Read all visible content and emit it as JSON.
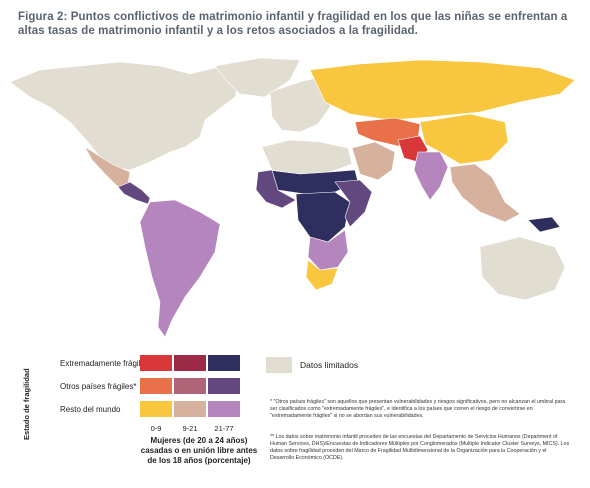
{
  "title": "Figura 2: Puntos conflictivos de matrimonio infantil y fragilidad en los que las niñas se enfrentan a altas tasas de matrimonio infantil y a los retos asociados a la fragilidad.",
  "legend": {
    "y_title": "Estado de fragilidad",
    "rows": [
      "Extremadamente frágil",
      "Otros países frágiles*",
      "Resto del mundo"
    ],
    "columns": [
      "0-9",
      "9-21",
      "21-77"
    ],
    "x_title": "Mujeres (de 20 a 24 años) casadas o en unión libre antes de los 18 años (porcentaje)",
    "colors": [
      [
        "#d8383a",
        "#9c2a47",
        "#2e2f5e"
      ],
      [
        "#e8714a",
        "#b06477",
        "#63487f"
      ],
      [
        "#f8c73f",
        "#d6b19e",
        "#b585bd"
      ]
    ],
    "limited_label": "Datos limitados",
    "limited_color": "#e2ddd1"
  },
  "notes": {
    "note1": "* \"Otros países frágiles\" son aquellos que presentan vulnerabilidades y riesgos significativos, pero no alcanzan el umbral para ser clasificados como \"extremadamente frágiles\", e identifica a los países que corren el riesgo de convertirse en \"extremadamente frágiles\" si no se abordan sus vulnerabilidades.",
    "note2": "** Los datos sobre matrimonio infantil proceden de las encuestas del Departamento de Servicios Humanos (Department of Human Services, DHS)/Encuestas de Indicadores Múltiples por Conglomerados (Multiple Indicator Cluster Surveys, MICS). Los datos sobre fragilidad proceden del Marco de Fragilidad Multidimensional de la Organización para la Cooperación y el Desarrollo Económico (OCDE)."
  },
  "map": {
    "regions": [
      {
        "name": "north-america",
        "color": "#e2ddd1"
      },
      {
        "name": "greenland",
        "color": "#e2ddd1"
      },
      {
        "name": "mexico",
        "color": "#d6b19e"
      },
      {
        "name": "central-america",
        "color": "#63487f"
      },
      {
        "name": "south-america",
        "color": "#b585bd"
      },
      {
        "name": "europe",
        "color": "#e2ddd1"
      },
      {
        "name": "russia",
        "color": "#f8c73f"
      },
      {
        "name": "north-africa",
        "color": "#e2ddd1"
      },
      {
        "name": "sahel",
        "color": "#2e2f5e"
      },
      {
        "name": "west-africa",
        "color": "#63487f"
      },
      {
        "name": "central-africa",
        "color": "#2e2f5e"
      },
      {
        "name": "east-africa",
        "color": "#63487f"
      },
      {
        "name": "southern-africa",
        "color": "#b585bd"
      },
      {
        "name": "south-africa",
        "color": "#f8c73f"
      },
      {
        "name": "middle-east",
        "color": "#d6b19e"
      },
      {
        "name": "central-asia",
        "color": "#e8714a"
      },
      {
        "name": "afghanistan",
        "color": "#d8383a"
      },
      {
        "name": "south-asia",
        "color": "#b585bd"
      },
      {
        "name": "china",
        "color": "#f8c73f"
      },
      {
        "name": "southeast-asia",
        "color": "#d6b19e"
      },
      {
        "name": "australia",
        "color": "#e2ddd1"
      },
      {
        "name": "papua",
        "color": "#2e2f5e"
      }
    ]
  }
}
